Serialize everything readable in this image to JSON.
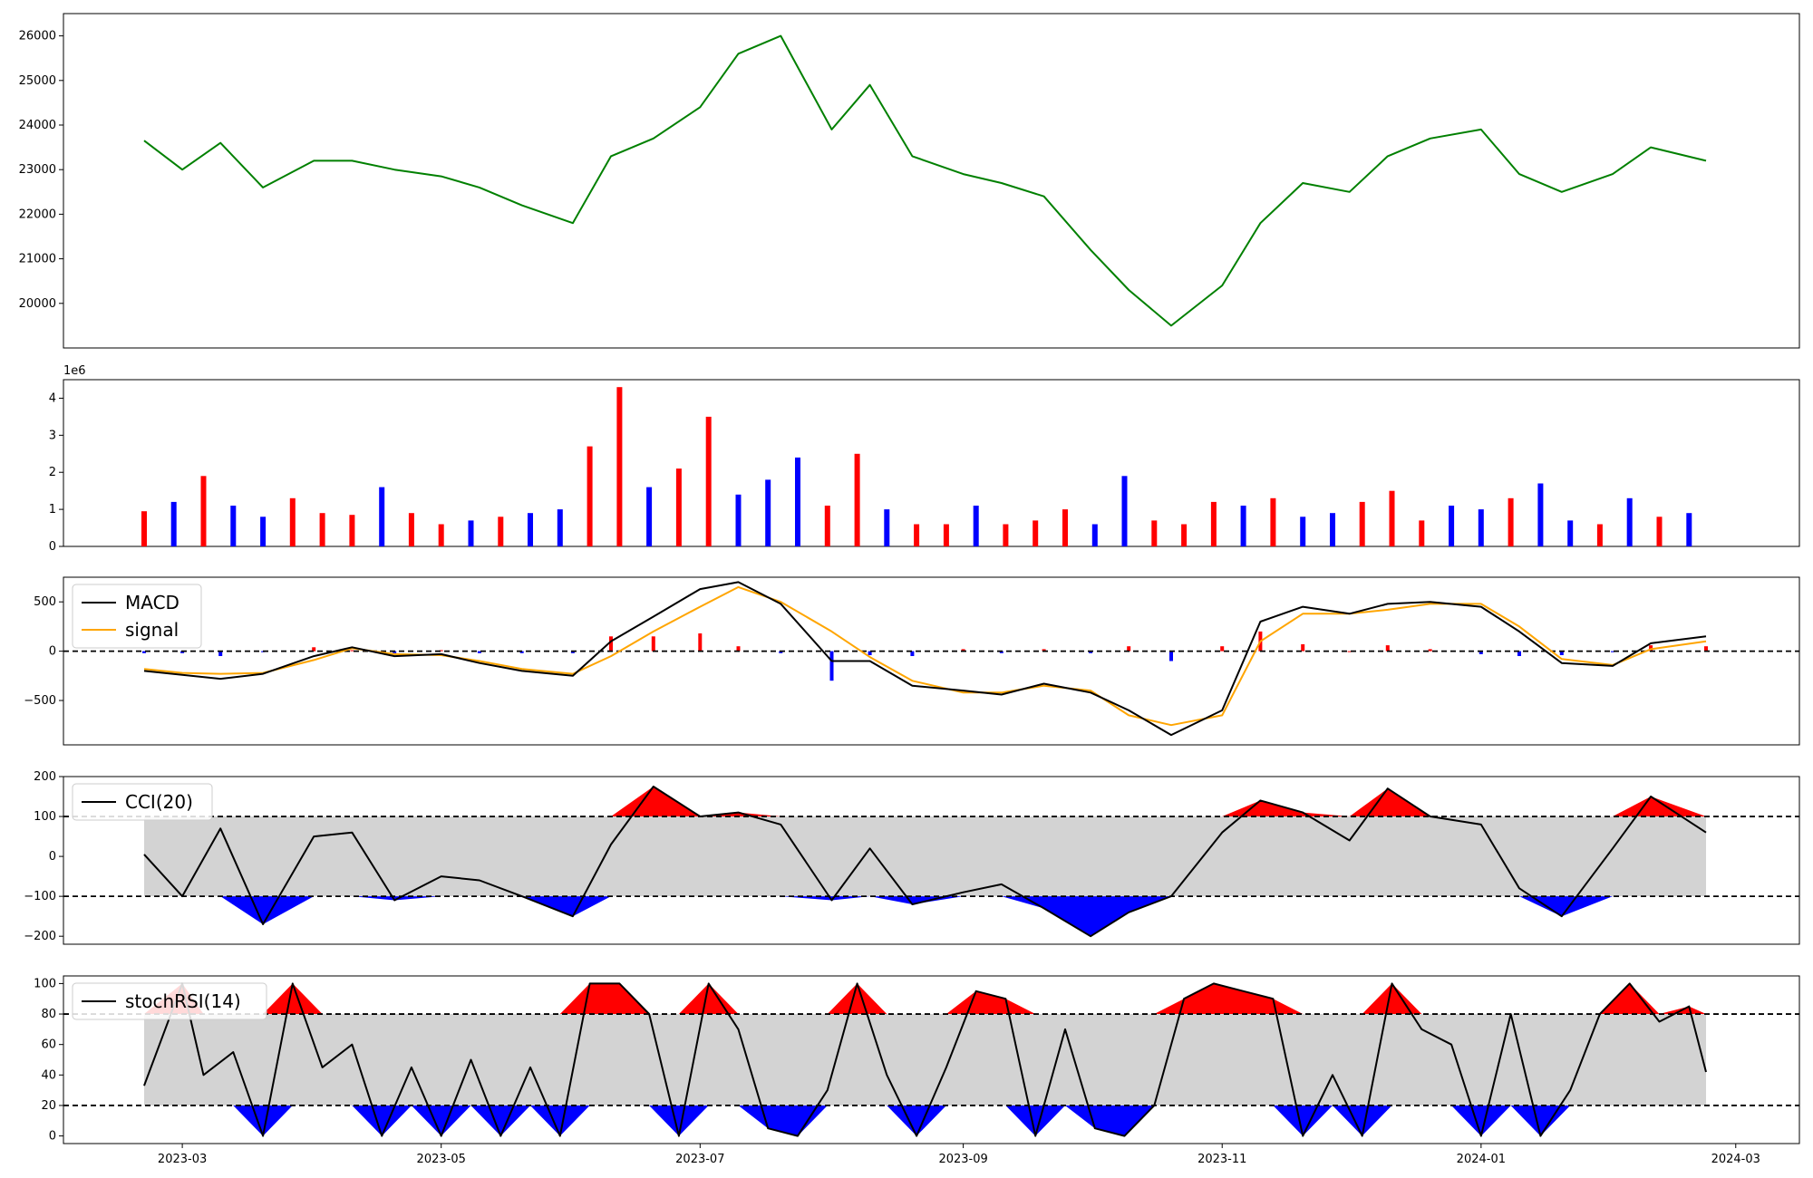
{
  "chart_data": [
    {
      "type": "line",
      "name": "price",
      "color": "#008000",
      "ylim": [
        19000,
        26500
      ],
      "yticks": [
        "20000",
        "21000",
        "22000",
        "23000",
        "24000",
        "25000",
        "26000"
      ],
      "x": [
        "2023-02-20",
        "2023-03-01",
        "2023-03-10",
        "2023-03-20",
        "2023-04-01",
        "2023-04-10",
        "2023-04-20",
        "2023-05-01",
        "2023-05-10",
        "2023-05-20",
        "2023-06-01",
        "2023-06-10",
        "2023-06-20",
        "2023-07-01",
        "2023-07-10",
        "2023-07-20",
        "2023-08-01",
        "2023-08-10",
        "2023-08-20",
        "2023-09-01",
        "2023-09-10",
        "2023-09-20",
        "2023-10-01",
        "2023-10-10",
        "2023-10-20",
        "2023-11-01",
        "2023-11-10",
        "2023-11-20",
        "2023-12-01",
        "2023-12-10",
        "2023-12-20",
        "2024-01-01",
        "2024-01-10",
        "2024-01-20",
        "2024-02-01",
        "2024-02-10",
        "2024-02-23"
      ],
      "values": [
        23650,
        23000,
        23600,
        22600,
        23200,
        23200,
        23000,
        22850,
        22600,
        22200,
        21800,
        23300,
        23700,
        24400,
        25600,
        26000,
        23900,
        24900,
        23300,
        22900,
        22700,
        22400,
        21200,
        20300,
        19500,
        20400,
        21800,
        22700,
        22500,
        23300,
        23700,
        23900,
        22900,
        22500,
        22900,
        23500,
        23200
      ]
    },
    {
      "type": "bar",
      "name": "volume",
      "multiplier_label": "1e6",
      "ylim": [
        0,
        4.5
      ],
      "yticks": [
        "0",
        "1",
        "2",
        "3",
        "4"
      ],
      "colors": {
        "up": "#ff0000",
        "down": "#0000ff",
        "flat": "#000000"
      },
      "x": [
        "2023-02-20",
        "2023-02-27",
        "2023-03-06",
        "2023-03-13",
        "2023-03-20",
        "2023-03-27",
        "2023-04-03",
        "2023-04-10",
        "2023-04-17",
        "2023-04-24",
        "2023-05-01",
        "2023-05-08",
        "2023-05-15",
        "2023-05-22",
        "2023-05-29",
        "2023-06-05",
        "2023-06-12",
        "2023-06-19",
        "2023-06-26",
        "2023-07-03",
        "2023-07-10",
        "2023-07-17",
        "2023-07-24",
        "2023-07-31",
        "2023-08-07",
        "2023-08-14",
        "2023-08-21",
        "2023-08-28",
        "2023-09-04",
        "2023-09-11",
        "2023-09-18",
        "2023-09-25",
        "2023-10-02",
        "2023-10-09",
        "2023-10-16",
        "2023-10-23",
        "2023-10-30",
        "2023-11-06",
        "2023-11-13",
        "2023-11-20",
        "2023-11-27",
        "2023-12-04",
        "2023-12-11",
        "2023-12-18",
        "2023-12-25",
        "2024-01-01",
        "2024-01-08",
        "2024-01-15",
        "2024-01-22",
        "2024-01-29",
        "2024-02-05",
        "2024-02-12",
        "2024-02-19"
      ],
      "values": [
        0.95,
        1.2,
        1.9,
        1.1,
        0.8,
        1.3,
        0.9,
        0.85,
        1.6,
        0.9,
        0.6,
        0.7,
        0.8,
        0.9,
        1.0,
        2.7,
        4.3,
        1.6,
        2.1,
        3.5,
        1.4,
        1.8,
        2.4,
        1.1,
        2.5,
        1.0,
        0.6,
        0.6,
        1.1,
        0.6,
        0.7,
        1.0,
        0.6,
        1.9,
        0.7,
        0.6,
        1.2,
        1.1,
        1.3,
        0.8,
        0.9,
        1.2,
        1.5,
        0.7,
        1.1,
        1.0,
        1.3,
        1.7,
        0.7,
        0.6,
        1.3,
        0.8,
        0.9
      ],
      "directions": [
        "up",
        "down",
        "up",
        "down",
        "down",
        "up",
        "up",
        "up",
        "down",
        "up",
        "up",
        "down",
        "up",
        "down",
        "down",
        "up",
        "up",
        "down",
        "up",
        "up",
        "down",
        "down",
        "down",
        "up",
        "up",
        "down",
        "up",
        "up",
        "down",
        "up",
        "up",
        "up",
        "down",
        "down",
        "up",
        "up",
        "up",
        "down",
        "up",
        "down",
        "down",
        "up",
        "up",
        "up",
        "down",
        "down",
        "up",
        "down",
        "down",
        "up",
        "down",
        "up",
        "down"
      ]
    },
    {
      "type": "line",
      "name": "macd",
      "ylim": [
        -950,
        750
      ],
      "yticks": [
        "−500",
        "0",
        "500"
      ],
      "zero_line": 0,
      "legend": [
        {
          "label": "MACD",
          "color": "#000000"
        },
        {
          "label": "signal",
          "color": "#ffa500"
        }
      ],
      "x": [
        "2023-02-20",
        "2023-03-01",
        "2023-03-10",
        "2023-03-20",
        "2023-04-01",
        "2023-04-10",
        "2023-04-20",
        "2023-05-01",
        "2023-05-10",
        "2023-05-20",
        "2023-06-01",
        "2023-06-10",
        "2023-06-20",
        "2023-07-01",
        "2023-07-10",
        "2023-07-20",
        "2023-08-01",
        "2023-08-10",
        "2023-08-20",
        "2023-09-01",
        "2023-09-10",
        "2023-09-20",
        "2023-10-01",
        "2023-10-10",
        "2023-10-20",
        "2023-11-01",
        "2023-11-10",
        "2023-11-20",
        "2023-12-01",
        "2023-12-10",
        "2023-12-20",
        "2024-01-01",
        "2024-01-10",
        "2024-01-20",
        "2024-02-01",
        "2024-02-10",
        "2024-02-23"
      ],
      "macd": [
        -200,
        -240,
        -280,
        -230,
        -50,
        40,
        -50,
        -30,
        -120,
        -200,
        -250,
        100,
        350,
        630,
        700,
        480,
        -100,
        -100,
        -350,
        -400,
        -440,
        -330,
        -420,
        -600,
        -850,
        -600,
        300,
        450,
        380,
        480,
        500,
        450,
        200,
        -120,
        -150,
        80,
        150
      ],
      "signal": [
        -180,
        -220,
        -230,
        -220,
        -90,
        30,
        -30,
        -40,
        -100,
        -180,
        -230,
        -50,
        200,
        450,
        650,
        500,
        200,
        -60,
        -300,
        -420,
        -420,
        -350,
        -400,
        -650,
        -750,
        -650,
        100,
        380,
        380,
        420,
        480,
        480,
        250,
        -80,
        -140,
        20,
        100
      ]
    },
    {
      "type": "line",
      "name": "cci",
      "ylim": [
        -220,
        200
      ],
      "yticks": [
        "−200",
        "−100",
        "0",
        "100",
        "200"
      ],
      "upper": 100,
      "lower": -100,
      "legend": [
        {
          "label": "CCI(20)",
          "color": "#000000"
        }
      ],
      "x": [
        "2023-02-20",
        "2023-03-01",
        "2023-03-10",
        "2023-03-20",
        "2023-04-01",
        "2023-04-10",
        "2023-04-20",
        "2023-05-01",
        "2023-05-10",
        "2023-05-20",
        "2023-06-01",
        "2023-06-10",
        "2023-06-20",
        "2023-07-01",
        "2023-07-10",
        "2023-07-20",
        "2023-08-01",
        "2023-08-10",
        "2023-08-20",
        "2023-09-01",
        "2023-09-10",
        "2023-09-20",
        "2023-10-01",
        "2023-10-10",
        "2023-10-20",
        "2023-11-01",
        "2023-11-10",
        "2023-11-20",
        "2023-12-01",
        "2023-12-10",
        "2023-12-20",
        "2024-01-01",
        "2024-01-10",
        "2024-01-20",
        "2024-02-01",
        "2024-02-10",
        "2024-02-23"
      ],
      "values": [
        5,
        -100,
        70,
        -170,
        50,
        60,
        -110,
        -50,
        -60,
        -100,
        -150,
        30,
        175,
        100,
        110,
        80,
        -110,
        20,
        -120,
        -90,
        -70,
        -130,
        -200,
        -140,
        -100,
        60,
        140,
        110,
        40,
        170,
        100,
        80,
        -80,
        -150,
        20,
        150,
        60
      ]
    },
    {
      "type": "line",
      "name": "stochrsi",
      "ylim": [
        -5,
        105
      ],
      "yticks": [
        "0",
        "20",
        "40",
        "60",
        "80",
        "100"
      ],
      "upper": 80,
      "lower": 20,
      "legend": [
        {
          "label": "stochRSI(14)",
          "color": "#000000"
        }
      ],
      "xticks": [
        "2023-03",
        "2023-05",
        "2023-07",
        "2023-09",
        "2023-11",
        "2024-01",
        "2024-03"
      ],
      "x": [
        "2023-02-20",
        "2023-03-01",
        "2023-03-06",
        "2023-03-13",
        "2023-03-20",
        "2023-03-27",
        "2023-04-03",
        "2023-04-10",
        "2023-04-17",
        "2023-04-24",
        "2023-05-01",
        "2023-05-08",
        "2023-05-15",
        "2023-05-22",
        "2023-05-29",
        "2023-06-05",
        "2023-06-12",
        "2023-06-19",
        "2023-06-26",
        "2023-07-03",
        "2023-07-10",
        "2023-07-17",
        "2023-07-24",
        "2023-07-31",
        "2023-08-07",
        "2023-08-14",
        "2023-08-21",
        "2023-08-28",
        "2023-09-04",
        "2023-09-11",
        "2023-09-18",
        "2023-09-25",
        "2023-10-02",
        "2023-10-09",
        "2023-10-16",
        "2023-10-23",
        "2023-10-30",
        "2023-11-06",
        "2023-11-13",
        "2023-11-20",
        "2023-11-27",
        "2023-12-04",
        "2023-12-11",
        "2023-12-18",
        "2023-12-25",
        "2024-01-01",
        "2024-01-08",
        "2024-01-15",
        "2024-01-22",
        "2024-01-29",
        "2024-02-05",
        "2024-02-12",
        "2024-02-19",
        "2024-02-23"
      ],
      "values": [
        33,
        100,
        40,
        55,
        0,
        100,
        45,
        60,
        0,
        45,
        0,
        50,
        0,
        45,
        0,
        100,
        100,
        80,
        0,
        100,
        70,
        5,
        0,
        30,
        100,
        40,
        0,
        45,
        95,
        90,
        0,
        70,
        5,
        0,
        20,
        90,
        100,
        95,
        90,
        0,
        40,
        0,
        100,
        70,
        60,
        0,
        80,
        0,
        30,
        80,
        100,
        75,
        85,
        42
      ]
    }
  ]
}
